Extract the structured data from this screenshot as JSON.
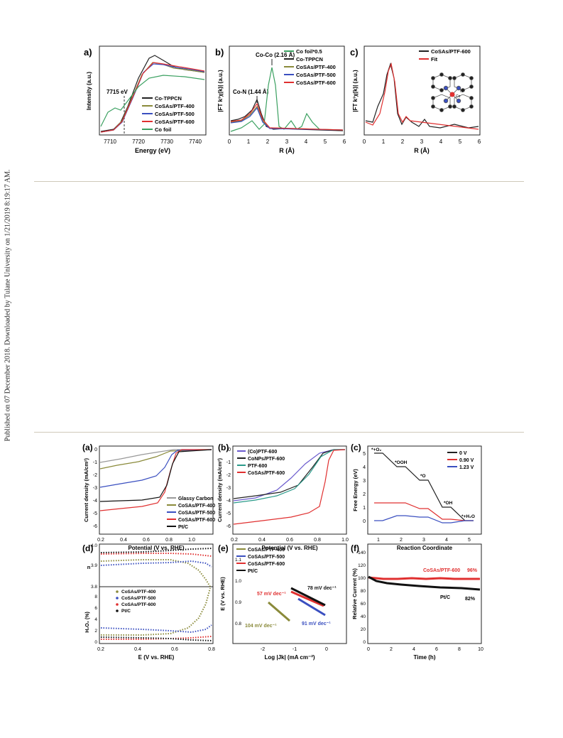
{
  "sidebar_text": "Published on 07 December 2018. Downloaded by Tulane University on 1/21/2019 8:19:17 AM.",
  "figure1": {
    "a": {
      "letter": "a)",
      "xlabel": "Energy (eV)",
      "ylabel": "Intensity (a.u.)",
      "xticks": [
        "7710",
        "7720",
        "7730",
        "7740"
      ],
      "annotation": "7715 eV",
      "legend": [
        {
          "name": "Co-TPPCN",
          "color": "#222222"
        },
        {
          "name": "CoSAs/PTF-400",
          "color": "#8a8a3a"
        },
        {
          "name": "CoSAs/PTF-500",
          "color": "#3a4fc0"
        },
        {
          "name": "CoSAs/PTF-600",
          "color": "#e03030"
        },
        {
          "name": "Co foil",
          "color": "#3aa060"
        }
      ]
    },
    "b": {
      "letter": "b)",
      "xlabel": "R (Å)",
      "ylabel": "|FT k³χ(k)| (a.u.)",
      "xticks": [
        "0",
        "1",
        "2",
        "3",
        "4",
        "5",
        "6"
      ],
      "annotation_cocd": "Co-Co (2.16 Å)",
      "annotation_con": "Co-N (1.44 Å)",
      "legend": [
        {
          "name": "Co foil*0.5",
          "color": "#3aa060"
        },
        {
          "name": "Co-TPPCN",
          "color": "#222222"
        },
        {
          "name": "CoSAs/PTF-400",
          "color": "#8a8a3a"
        },
        {
          "name": "CoSAs/PTF-500",
          "color": "#3a4fc0"
        },
        {
          "name": "CoSAs/PTF-600",
          "color": "#e03030"
        }
      ]
    },
    "c": {
      "letter": "c)",
      "xlabel": "R (Å)",
      "ylabel": "|FT k³χ(k)| (a.u.)",
      "xticks": [
        "0",
        "1",
        "2",
        "3",
        "4",
        "5",
        "6"
      ],
      "legend": [
        {
          "name": "CoSAs/PTF-600",
          "color": "#222222"
        },
        {
          "name": "Fit",
          "color": "#e03030"
        }
      ],
      "co_label": "Co",
      "n_label": "N"
    }
  },
  "figure2": {
    "a": {
      "letter": "(a)",
      "xlabel": "Potential (V vs. RHE)",
      "ylabel": "Current density (mA/cm²)",
      "xticks": [
        "0.2",
        "0.4",
        "0.6",
        "0.8",
        "1.0"
      ],
      "yticks": [
        "-6",
        "-5",
        "-4",
        "-3",
        "-2",
        "-1",
        "0"
      ],
      "legend": [
        {
          "name": "Glassy Carbon",
          "color": "#999999"
        },
        {
          "name": "CoSAs/PTF-400",
          "color": "#8a8a3a"
        },
        {
          "name": "CoSAs/PTF-500",
          "color": "#3a4fc0"
        },
        {
          "name": "CoSAs/PTF-600",
          "color": "#e03030"
        },
        {
          "name": "Pt/C",
          "color": "#111111"
        }
      ]
    },
    "b": {
      "letter": "(b)",
      "xlabel": "Potential (V vs. RHE)",
      "ylabel": "Current density (mA/cm²)",
      "xticks": [
        "0.2",
        "0.4",
        "0.6",
        "0.8",
        "1.0"
      ],
      "yticks": [
        "-6",
        "-5",
        "-4",
        "-3",
        "-2",
        "-1",
        "0"
      ],
      "legend": [
        {
          "name": "(Co)PTF-600",
          "color": "#6a5acd"
        },
        {
          "name": "CoNPs/PTF-600",
          "color": "#222222"
        },
        {
          "name": "PTF-600",
          "color": "#2a9a8a"
        },
        {
          "name": "CoSAs/PTF-600",
          "color": "#e03030"
        }
      ]
    },
    "c": {
      "letter": "(c)",
      "xlabel": "Reaction Coordinate",
      "ylabel": "Free Energy (eV)",
      "xticks": [
        "1",
        "2",
        "3",
        "4",
        "5"
      ],
      "yticks": [
        "0",
        "1",
        "2",
        "3",
        "4",
        "5"
      ],
      "state_labels": [
        "*+O₂",
        "*OOH",
        "*O",
        "*OH",
        "*+H₂O"
      ],
      "legend": [
        {
          "name": "0 V",
          "color": "#222222"
        },
        {
          "name": "0.90 V",
          "color": "#e03030"
        },
        {
          "name": "1.23 V",
          "color": "#3a4fc0"
        }
      ]
    },
    "d": {
      "letter": "(d)",
      "xlabel": "E (V vs. RHE)",
      "ylabel_top": "n",
      "ylabel_bottom": "H₂O₂ (%)",
      "xticks": [
        "0.2",
        "0.4",
        "0.6",
        "0.8"
      ],
      "yticks_top": [
        "3.8",
        "3.9",
        "4.0"
      ],
      "yticks_bottom": [
        "0",
        "2",
        "4",
        "6",
        "8"
      ],
      "legend": [
        {
          "name": "CoSAs/PTF-400",
          "color": "#8a8a3a"
        },
        {
          "name": "CoSAs/PTF-500",
          "color": "#3a4fc0"
        },
        {
          "name": "CoSAs/PTF-600",
          "color": "#e03030"
        },
        {
          "name": "Pt/C",
          "color": "#111111"
        }
      ]
    },
    "e": {
      "letter": "(e)",
      "xlabel": "Log |Jk| (mA cm⁻²)",
      "ylabel": "E (V vs. RHE)",
      "xticks": [
        "-2",
        "-1",
        "0"
      ],
      "yticks": [
        "0.8",
        "0.9",
        "1.0",
        "1.1"
      ],
      "legend": [
        {
          "name": "CoSAs/PTF-400",
          "color": "#8a8a3a"
        },
        {
          "name": "CoSAs/PTF-500",
          "color": "#3a4fc0"
        },
        {
          "name": "CoSAs/PTF-600",
          "color": "#e03030"
        },
        {
          "name": "Pt/C",
          "color": "#111111"
        }
      ],
      "tafel": [
        {
          "text": "57 mV dec⁻¹",
          "color": "#e03030"
        },
        {
          "text": "78 mV dec⁻¹",
          "color": "#111111"
        },
        {
          "text": "104 mV dec⁻¹",
          "color": "#8a8a3a"
        },
        {
          "text": "91 mV dec⁻¹",
          "color": "#3a4fc0"
        }
      ]
    },
    "f": {
      "letter": "(f)",
      "xlabel": "Time (h)",
      "ylabel": "Relative Current (%)",
      "xticks": [
        "0",
        "2",
        "4",
        "6",
        "8",
        "10"
      ],
      "yticks": [
        "0",
        "20",
        "40",
        "60",
        "80",
        "100",
        "120",
        "140"
      ],
      "label_cosas": "CoSAs/PTF-600",
      "value_cosas": "96%",
      "label_ptc": "Pt/C",
      "value_ptc": "82%"
    }
  }
}
